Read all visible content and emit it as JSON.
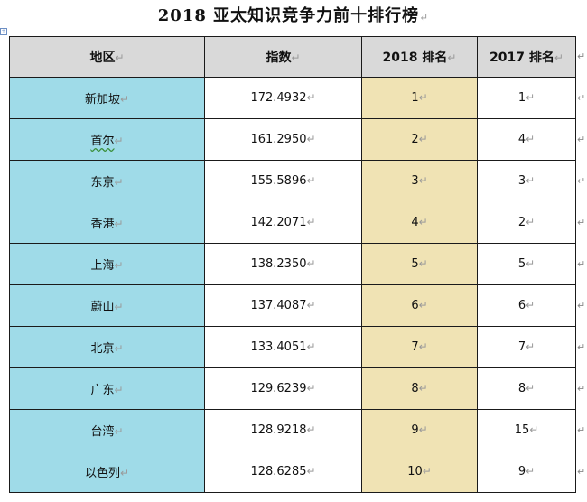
{
  "title": "2018 亚太知识竞争力前十排行榜",
  "paragraph_mark": "↵",
  "anchor_icon": "table-anchor-icon",
  "colors": {
    "header_bg": "#d9d9d9",
    "region_bg": "#9fdbe8",
    "rank2018_bg": "#f0e3b4"
  },
  "table": {
    "headers": [
      "地区",
      "指数",
      "2018 排名",
      "2017 排名"
    ],
    "rows": [
      {
        "region": "新加坡",
        "index": "172.4932",
        "rank2018": "1",
        "rank2017": "1"
      },
      {
        "region": "首尔",
        "index": "161.2950",
        "rank2018": "2",
        "rank2017": "4"
      },
      {
        "region": "东京",
        "index": "155.5896",
        "rank2018": "3",
        "rank2017": "3"
      },
      {
        "region": "香港",
        "index": "142.2071",
        "rank2018": "4",
        "rank2017": "2"
      },
      {
        "region": "上海",
        "index": "138.2350",
        "rank2018": "5",
        "rank2017": "5"
      },
      {
        "region": "蔚山",
        "index": "137.4087",
        "rank2018": "6",
        "rank2017": "6"
      },
      {
        "region": "北京",
        "index": "133.4051",
        "rank2018": "7",
        "rank2017": "7"
      },
      {
        "region": "广东",
        "index": "129.6239",
        "rank2018": "8",
        "rank2017": "8"
      },
      {
        "region": "台湾",
        "index": "128.9218",
        "rank2018": "9",
        "rank2017": "15"
      },
      {
        "region": "以色列",
        "index": "128.6285",
        "rank2018": "10",
        "rank2017": "9"
      }
    ]
  }
}
